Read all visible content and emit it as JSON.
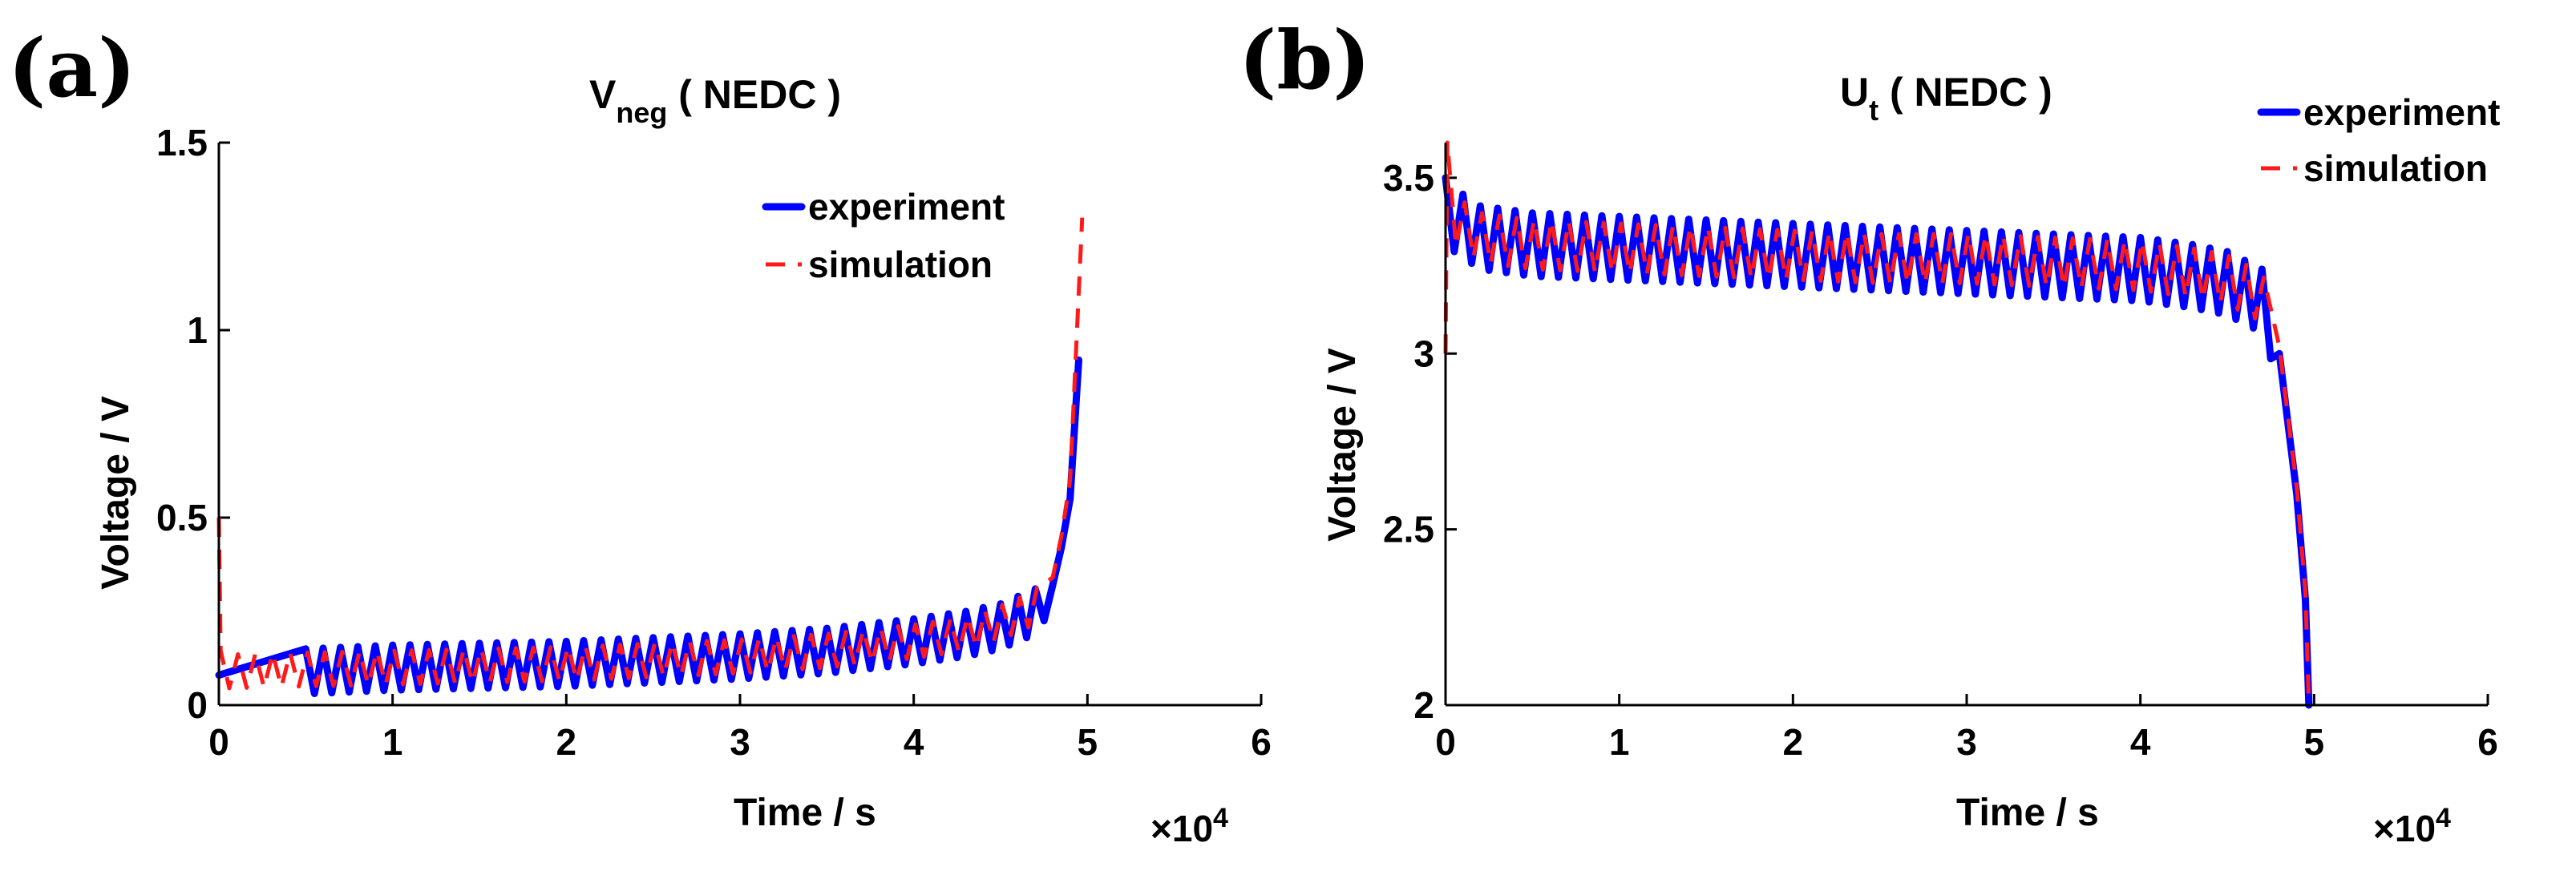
{
  "chart_data": [
    {
      "type": "line",
      "panel_label": "(a)",
      "title_main": "V",
      "title_sub": "neg",
      "title_rest": " ( NEDC )",
      "xlabel": "Time / s",
      "ylabel": "Voltage / V",
      "x_multiplier": "×10",
      "x_multiplier_exp": "4",
      "xlim": [
        0,
        6
      ],
      "ylim": [
        0,
        1.5
      ],
      "x_ticks": [
        "0",
        "1",
        "2",
        "3",
        "4",
        "5",
        "6"
      ],
      "y_ticks": [
        "0",
        "0.5",
        "1",
        "1.5"
      ],
      "y_tick_values": [
        0,
        0.5,
        1,
        1.5
      ],
      "legend_position": "top-right",
      "legend": [
        "experiment",
        "simulation"
      ],
      "series": [
        {
          "name": "experiment",
          "color": "#0000ff",
          "style": "solid",
          "oscillation": 0.06,
          "x": [
            0,
            0.5,
            1.0,
            1.5,
            2.0,
            2.5,
            3.0,
            3.5,
            4.0,
            4.3,
            4.5,
            4.7,
            4.8,
            4.85,
            4.9,
            4.95
          ],
          "y": [
            0.08,
            0.09,
            0.1,
            0.105,
            0.11,
            0.12,
            0.13,
            0.145,
            0.17,
            0.19,
            0.21,
            0.25,
            0.32,
            0.42,
            0.55,
            0.92
          ]
        },
        {
          "name": "simulation",
          "color": "#ff1a1a",
          "style": "dashed",
          "oscillation": 0.045,
          "x": [
            0,
            0.01,
            0.05,
            0.5,
            1.0,
            1.5,
            2.0,
            2.5,
            3.0,
            3.5,
            4.0,
            4.3,
            4.5,
            4.7,
            4.8,
            4.85,
            4.9,
            4.97
          ],
          "y": [
            0.5,
            0.1,
            0.09,
            0.095,
            0.1,
            0.105,
            0.11,
            0.12,
            0.13,
            0.145,
            0.17,
            0.19,
            0.22,
            0.26,
            0.34,
            0.45,
            0.6,
            1.3
          ]
        }
      ]
    },
    {
      "type": "line",
      "panel_label": "(b)",
      "title_main": "U",
      "title_sub": "t",
      "title_rest": " ( NEDC )",
      "xlabel": "Time / s",
      "ylabel": "Voltage / V",
      "x_multiplier": "×10",
      "x_multiplier_exp": "4",
      "xlim": [
        0,
        6
      ],
      "ylim": [
        2,
        3.6
      ],
      "x_ticks": [
        "0",
        "1",
        "2",
        "3",
        "4",
        "5",
        "6"
      ],
      "y_ticks": [
        "2",
        "2.5",
        "3",
        "3.5"
      ],
      "y_tick_values": [
        2,
        2.5,
        3,
        3.5
      ],
      "legend_position": "top-right",
      "legend": [
        "experiment",
        "simulation"
      ],
      "series": [
        {
          "name": "experiment",
          "color": "#0000ff",
          "style": "solid",
          "oscillation": 0.09,
          "x": [
            0,
            0.05,
            0.2,
            0.5,
            1.0,
            1.5,
            2.0,
            2.5,
            3.0,
            3.5,
            4.0,
            4.3,
            4.5,
            4.7,
            4.8,
            4.85,
            4.9,
            4.95,
            4.97
          ],
          "y": [
            3.5,
            3.38,
            3.33,
            3.31,
            3.3,
            3.29,
            3.28,
            3.27,
            3.26,
            3.25,
            3.24,
            3.22,
            3.2,
            3.15,
            3.0,
            2.8,
            2.6,
            2.3,
            2.0
          ]
        },
        {
          "name": "simulation",
          "color": "#ff1a1a",
          "style": "dashed",
          "oscillation": 0.07,
          "x": [
            0,
            0.01,
            0.05,
            0.2,
            0.5,
            1.0,
            1.5,
            2.0,
            2.5,
            3.0,
            3.5,
            4.0,
            4.3,
            4.5,
            4.7,
            4.8,
            4.85,
            4.9,
            4.95,
            4.97
          ],
          "y": [
            3.0,
            3.55,
            3.38,
            3.33,
            3.31,
            3.3,
            3.29,
            3.28,
            3.27,
            3.27,
            3.26,
            3.25,
            3.23,
            3.21,
            3.16,
            3.02,
            2.82,
            2.62,
            2.32,
            2.0
          ]
        }
      ]
    }
  ]
}
